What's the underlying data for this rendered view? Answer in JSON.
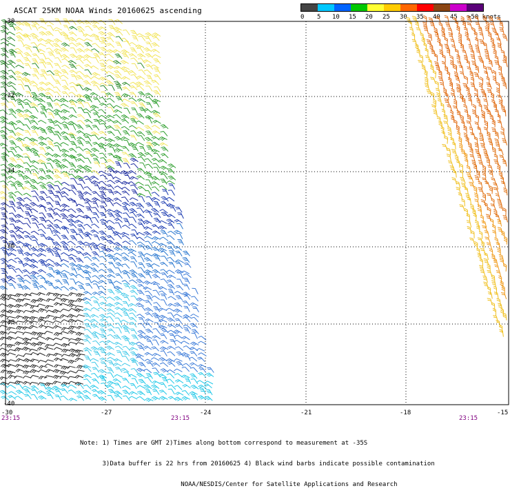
{
  "title": "ASCAT 25KM NOAA Winds 20160625 ascending",
  "legend": {
    "labels": [
      "0",
      "5",
      "10",
      "15",
      "20",
      "25",
      "30",
      "35",
      "40",
      "45",
      ">50 knots"
    ],
    "colors": [
      "#444444",
      "#00c8ff",
      "#0064ff",
      "#00c800",
      "#ffff33",
      "#ffcc00",
      "#ff6600",
      "#ff0000",
      "#8b4513",
      "#cc00cc",
      "#5a0078"
    ]
  },
  "map": {
    "lat_labels": [
      "-30",
      "-32",
      "-34",
      "-36",
      "-38",
      "-40"
    ],
    "lon_labels": [
      "-30",
      "-27",
      "-24",
      "-21",
      "-18",
      "-15"
    ],
    "lon_range": [
      -30,
      -15
    ],
    "lat_range": [
      -30,
      -40
    ],
    "time_labels": [
      "23:15",
      "23:15",
      "23:15"
    ]
  },
  "notes": [
    "Note: 1) Times are GMT 2)Times along bottom correspond to measurement at -35S",
    "      3)Data buffer is 22 hrs from 20160625 4) Black wind barbs indicate possible contamination",
    "                           NOAA/NESDIS/Center for Satellite Applications and Research"
  ]
}
